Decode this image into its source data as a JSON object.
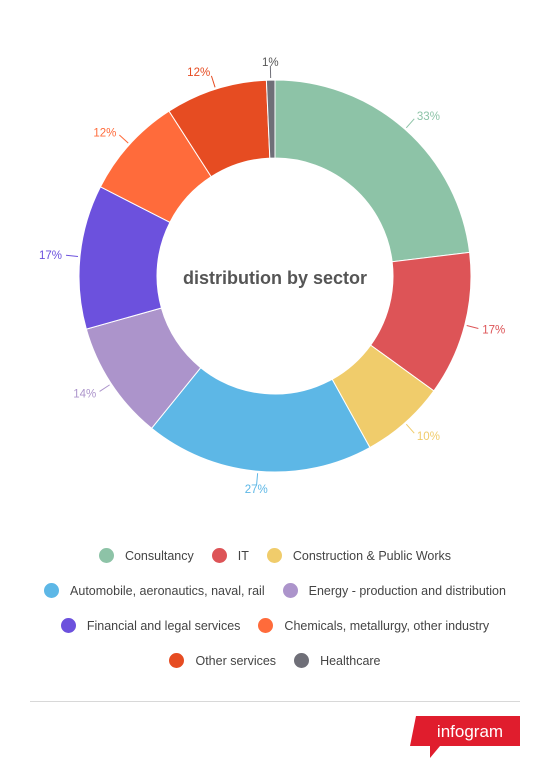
{
  "chart_data": {
    "type": "pie",
    "donut": true,
    "title": "distribution by sector",
    "total_percent_note": "",
    "slices": [
      {
        "name": "Consultancy",
        "label": "33%",
        "value": 33,
        "color": "#8dc3a7"
      },
      {
        "name": "IT",
        "label": "17%",
        "value": 17,
        "color": "#dd5457"
      },
      {
        "name": "Construction & Public Works",
        "label": "10%",
        "value": 10,
        "color": "#f0cc6b"
      },
      {
        "name": "Automobile, aeronautics, naval, rail",
        "label": "27%",
        "value": 27,
        "color": "#5db7e6"
      },
      {
        "name": "Energy - production and distribution",
        "label": "14%",
        "value": 14,
        "color": "#ac94cb"
      },
      {
        "name": "Financial and legal services",
        "label": "17%",
        "value": 17,
        "color": "#6c51dd"
      },
      {
        "name": "Chemicals, metallurgy, other industry",
        "label": "12%",
        "value": 12,
        "color": "#ff6b3b"
      },
      {
        "name": "Other services",
        "label": "12%",
        "value": 12,
        "color": "#e64c22"
      },
      {
        "name": "Healthcare",
        "label": "1%",
        "value": 1,
        "color": "#6f6f78"
      }
    ],
    "legend": "bottom"
  },
  "legend_rows": [
    [
      0,
      1,
      2
    ],
    [
      3,
      4
    ],
    [
      5,
      6
    ],
    [
      7,
      8
    ]
  ],
  "brand": {
    "text": "infogram",
    "color": "#e01d2d"
  }
}
